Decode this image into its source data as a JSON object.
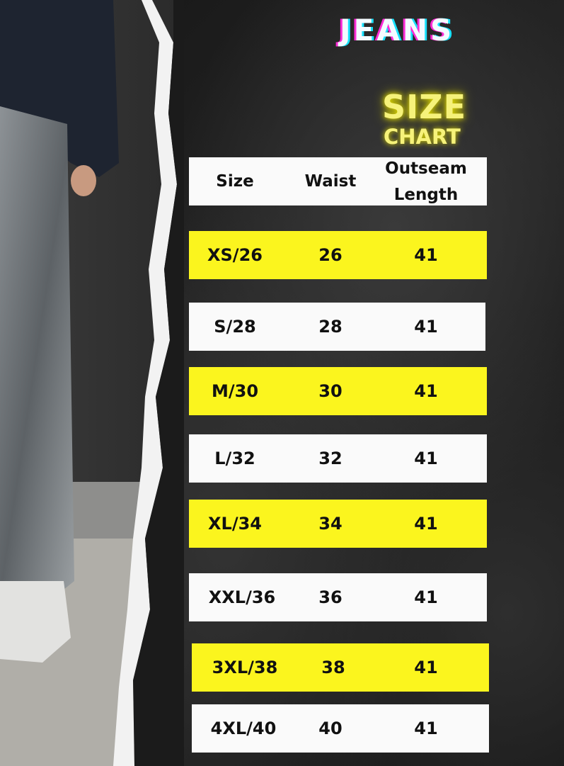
{
  "brand_title": "JEANS",
  "heading_line1": "SIZE",
  "heading_line2": "CHART",
  "colors": {
    "row_highlight": "#fbf51e",
    "row_plain": "#fafafa",
    "title_glow": "#f6f27a",
    "background": "#1b1b1b"
  },
  "table": {
    "headers": [
      "Size",
      "Waist",
      "Outseam",
      "Length"
    ],
    "rows": [
      {
        "size": "XS/26",
        "waist": "26",
        "outseam": "41"
      },
      {
        "size": "S/28",
        "waist": "28",
        "outseam": "41"
      },
      {
        "size": "M/30",
        "waist": "30",
        "outseam": "41"
      },
      {
        "size": "L/32",
        "waist": "32",
        "outseam": "41"
      },
      {
        "size": "XL/34",
        "waist": "34",
        "outseam": "41"
      },
      {
        "size": "XXL/36",
        "waist": "36",
        "outseam": "41"
      },
      {
        "size": "3XL/38",
        "waist": "38",
        "outseam": "41"
      },
      {
        "size": "4XL/40",
        "waist": "40",
        "outseam": "41"
      }
    ]
  }
}
